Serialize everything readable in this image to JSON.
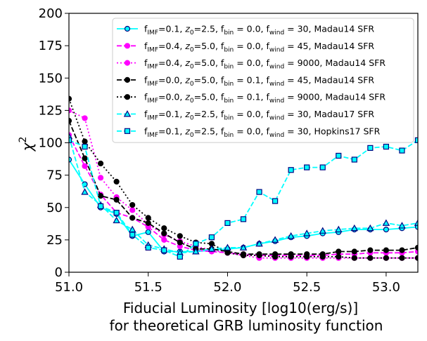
{
  "chart_data": {
    "type": "line",
    "title": "",
    "xlabel_lines": [
      "Fiducial Luminosity [log10(erg/s)]",
      "for theoretical GRB luminosity function"
    ],
    "ylabel": "χ",
    "ylabel_superscript": "2",
    "xlim": [
      51.0,
      53.2
    ],
    "ylim": [
      0,
      200
    ],
    "xticks": [
      51.0,
      51.5,
      52.0,
      52.5,
      53.0
    ],
    "xtick_labels": [
      "51.0",
      "51.5",
      "52.0",
      "52.5",
      "53.0"
    ],
    "yticks": [
      0,
      25,
      50,
      75,
      100,
      125,
      150,
      175,
      200
    ],
    "ytick_labels": [
      "0",
      "25",
      "50",
      "75",
      "100",
      "125",
      "150",
      "175",
      "200"
    ],
    "grid": false,
    "legend_position": "top-right",
    "x": [
      51.0,
      51.1,
      51.2,
      51.3,
      51.4,
      51.5,
      51.6,
      51.7,
      51.8,
      51.9,
      52.0,
      52.1,
      52.2,
      52.3,
      52.4,
      52.5,
      52.6,
      52.7,
      52.8,
      52.9,
      53.0,
      53.1,
      53.2
    ],
    "series": [
      {
        "name": "s1",
        "legend": [
          {
            "t": "f"
          },
          {
            "t": "IMF",
            "sub": true
          },
          {
            "t": "=0.1, "
          },
          {
            "t": "z",
            "it": true
          },
          {
            "t": "0",
            "sub": true
          },
          {
            "t": "=2.5, f"
          },
          {
            "t": "bin",
            "sub": true
          },
          {
            "t": " = 0.0, f"
          },
          {
            "t": "wind",
            "sub": true
          },
          {
            "t": " = 30, Madau14 SFR"
          }
        ],
        "color": "#00ffff",
        "linestyle": "solid",
        "marker": "circle",
        "marker_edge": "#000080",
        "values": [
          87,
          68,
          50,
          45,
          28,
          31,
          16,
          16,
          16,
          17,
          18,
          19,
          22,
          24,
          27,
          28,
          30,
          31,
          33,
          33,
          33,
          34,
          35
        ]
      },
      {
        "name": "s2",
        "legend": [
          {
            "t": "f"
          },
          {
            "t": "IMF",
            "sub": true
          },
          {
            "t": "=0.4, "
          },
          {
            "t": "z",
            "it": true
          },
          {
            "t": "0",
            "sub": true
          },
          {
            "t": "=5.0, f"
          },
          {
            "t": "bin",
            "sub": true
          },
          {
            "t": " = 0.0, f"
          },
          {
            "t": "wind",
            "sub": true
          },
          {
            "t": " = 45, Madau14 SFR"
          }
        ],
        "color": "#ff00ff",
        "linestyle": "dashed",
        "marker": "circle",
        "marker_edge": "#ff00ff",
        "values": [
          106,
          82,
          60,
          46,
          42,
          35,
          25,
          20,
          17,
          16,
          15,
          14,
          13,
          13,
          13,
          13,
          13,
          14,
          14,
          15,
          15,
          15,
          16
        ]
      },
      {
        "name": "s3",
        "legend": [
          {
            "t": "f"
          },
          {
            "t": "IMF",
            "sub": true
          },
          {
            "t": "=0.4, "
          },
          {
            "t": "z",
            "it": true
          },
          {
            "t": "0",
            "sub": true
          },
          {
            "t": "=5.0, f"
          },
          {
            "t": "bin",
            "sub": true
          },
          {
            "t": " = 0.0, f"
          },
          {
            "t": "wind",
            "sub": true
          },
          {
            "t": " = 9000, Madau14 SFR"
          }
        ],
        "color": "#ff00ff",
        "linestyle": "dotted",
        "marker": "circle",
        "marker_edge": "#ff00ff",
        "values": [
          125,
          119,
          73,
          58,
          48,
          37,
          29,
          24,
          20,
          17,
          15,
          13,
          11,
          11,
          11,
          11,
          11,
          11,
          11,
          11,
          11,
          11,
          11
        ]
      },
      {
        "name": "s4",
        "legend": [
          {
            "t": "f"
          },
          {
            "t": "IMF",
            "sub": true
          },
          {
            "t": "=0.0, "
          },
          {
            "t": "z",
            "it": true
          },
          {
            "t": "0",
            "sub": true
          },
          {
            "t": "=5.0, f"
          },
          {
            "t": "bin",
            "sub": true
          },
          {
            "t": " = 0.1, f"
          },
          {
            "t": "wind",
            "sub": true
          },
          {
            "t": " = 45, Madau14 SFR"
          }
        ],
        "color": "#000000",
        "linestyle": "dashed",
        "marker": "circle",
        "marker_edge": "#000000",
        "values": [
          117,
          88,
          59,
          56,
          42,
          38,
          30,
          23,
          18,
          18,
          16,
          14,
          14,
          14,
          14,
          14,
          14,
          16,
          16,
          17,
          17,
          17,
          19
        ]
      },
      {
        "name": "s5",
        "legend": [
          {
            "t": "f"
          },
          {
            "t": "IMF",
            "sub": true
          },
          {
            "t": "=0.0, "
          },
          {
            "t": "z",
            "it": true
          },
          {
            "t": "0",
            "sub": true
          },
          {
            "t": "=5.0, f"
          },
          {
            "t": "bin",
            "sub": true
          },
          {
            "t": " = 0.1, f"
          },
          {
            "t": "wind",
            "sub": true
          },
          {
            "t": " = 9000, Madau14 SFR"
          }
        ],
        "color": "#000000",
        "linestyle": "dotted",
        "marker": "circle",
        "marker_edge": "#000000",
        "values": [
          134,
          101,
          84,
          70,
          52,
          42,
          34,
          28,
          23,
          22,
          15,
          13,
          13,
          12,
          12,
          12,
          12,
          12,
          11,
          11,
          11,
          11,
          11
        ]
      },
      {
        "name": "s6",
        "legend": [
          {
            "t": "f"
          },
          {
            "t": "IMF",
            "sub": true
          },
          {
            "t": "=0.1, "
          },
          {
            "t": "z",
            "it": true
          },
          {
            "t": "0",
            "sub": true
          },
          {
            "t": "=2.5, f"
          },
          {
            "t": "bin",
            "sub": true
          },
          {
            "t": " = 0.0, f"
          },
          {
            "t": "wind",
            "sub": true
          },
          {
            "t": " = 30, Madau17 SFR"
          }
        ],
        "color": "#00ffff",
        "linestyle": "dashed",
        "marker": "triangle",
        "marker_edge": "#000080",
        "values": [
          105,
          62,
          52,
          40,
          33,
          21,
          18,
          15,
          16,
          18,
          19,
          19,
          22,
          25,
          28,
          30,
          32,
          33,
          34,
          34,
          38,
          36,
          38
        ]
      },
      {
        "name": "s7",
        "legend": [
          {
            "t": "f"
          },
          {
            "t": "IMF",
            "sub": true
          },
          {
            "t": "=0.1, "
          },
          {
            "t": "z",
            "it": true
          },
          {
            "t": "0",
            "sub": true
          },
          {
            "t": "=2.5, f"
          },
          {
            "t": "bin",
            "sub": true
          },
          {
            "t": " = 0.0, f"
          },
          {
            "t": "wind",
            "sub": true
          },
          {
            "t": " = 30, Hopkins17 SFR"
          }
        ],
        "color": "#00ffff",
        "linestyle": "dashed",
        "marker": "square",
        "marker_edge": "#000080",
        "values": [
          102,
          97,
          51,
          46,
          29,
          19,
          17,
          12,
          22,
          27,
          38,
          41,
          62,
          55,
          79,
          81,
          81,
          90,
          87,
          96,
          97,
          94,
          102
        ]
      }
    ]
  }
}
